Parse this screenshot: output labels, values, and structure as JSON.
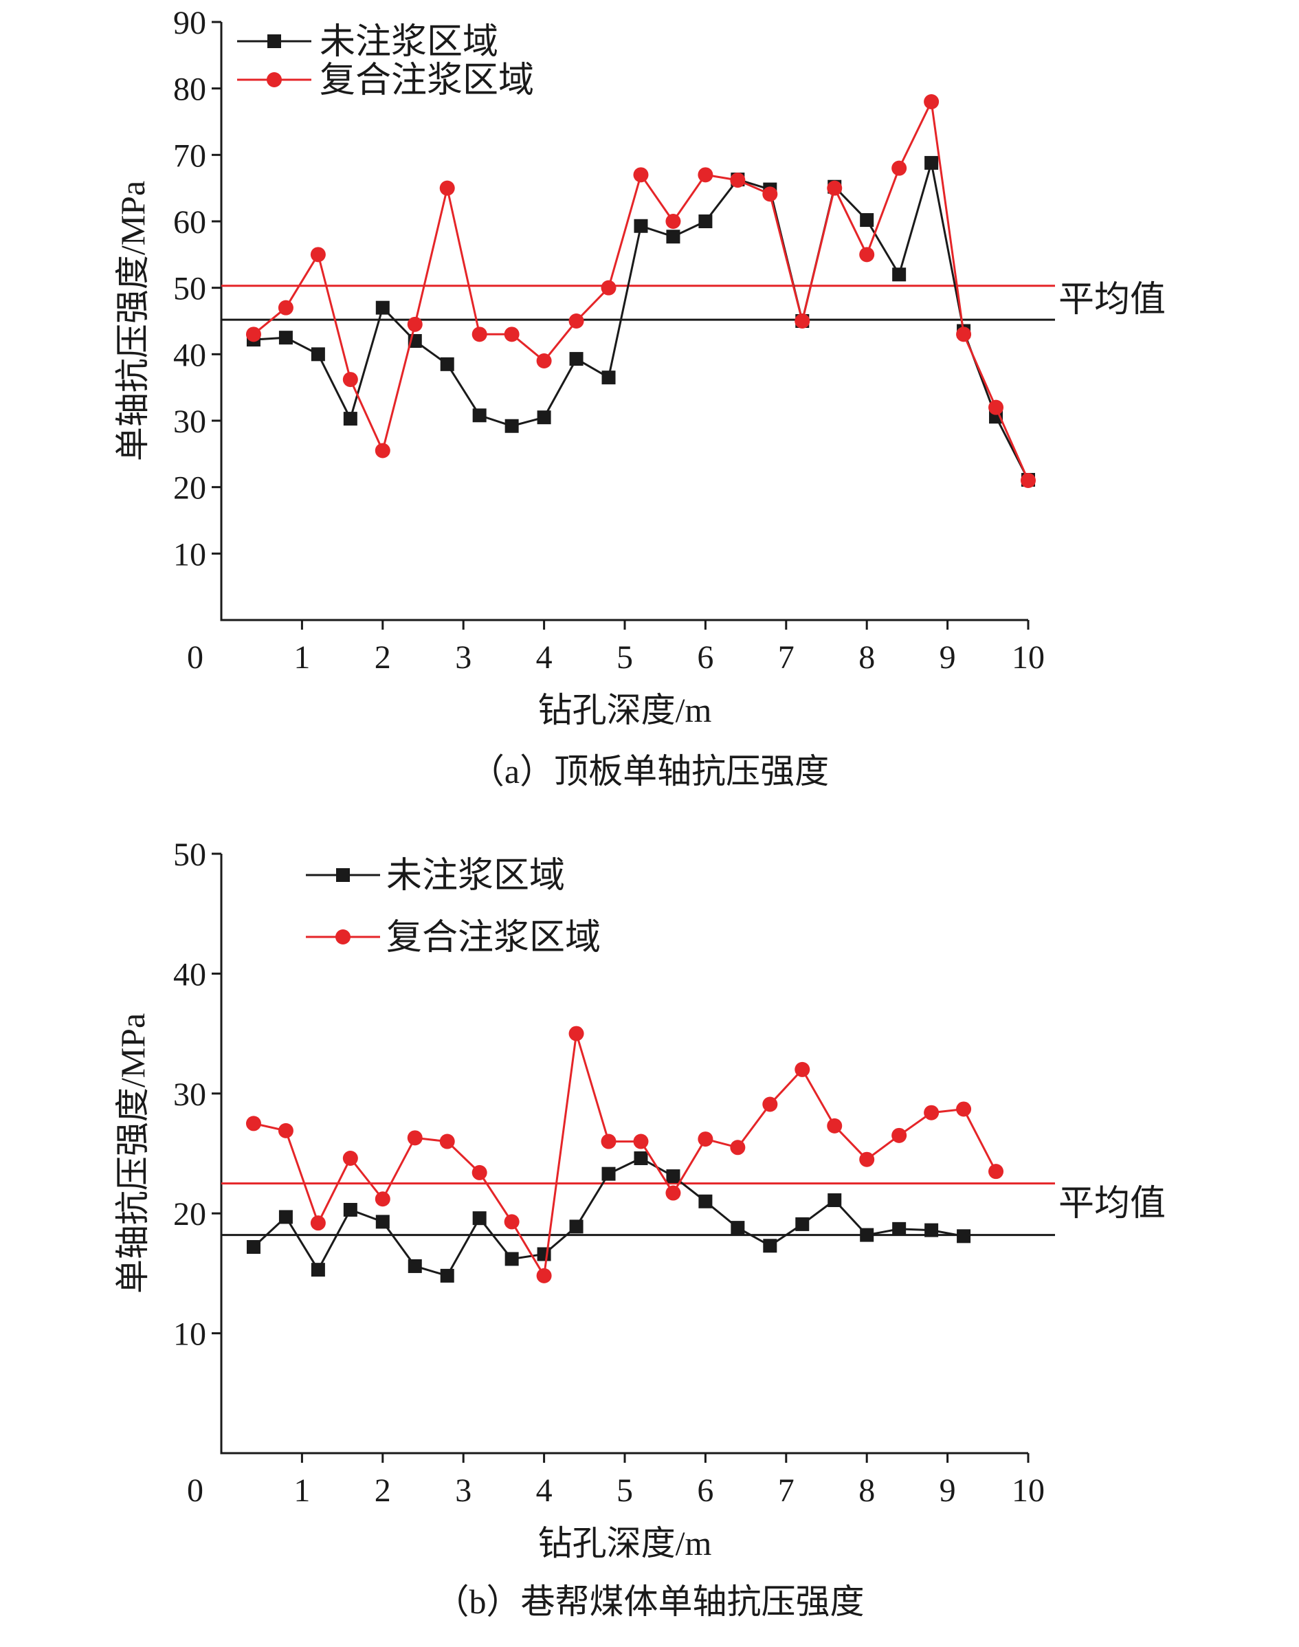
{
  "colors": {
    "series_black": "#1a1a1a",
    "series_red": "#e52528",
    "axis": "#1a1a1a"
  },
  "chart_data": [
    {
      "id": "a",
      "type": "line",
      "caption": "（a）顶板单轴抗压强度",
      "xlabel": "钻孔深度/m",
      "ylabel": "单轴抗压强度/MPa",
      "xlim": [
        0,
        10
      ],
      "ylim": [
        0,
        90
      ],
      "xticks": [
        0,
        1,
        2,
        3,
        4,
        5,
        6,
        7,
        8,
        9,
        10
      ],
      "yticks": [
        10,
        20,
        30,
        40,
        50,
        60,
        70,
        80,
        90
      ],
      "legend_location": "top-left",
      "series": [
        {
          "name": "未注浆区域",
          "marker": "square",
          "color": "#1a1a1a",
          "x": [
            0.4,
            0.8,
            1.2,
            1.6,
            2.0,
            2.4,
            2.8,
            3.2,
            3.6,
            4.0,
            4.4,
            4.8,
            5.2,
            5.6,
            6.0,
            6.4,
            6.8,
            7.2,
            7.6,
            8.0,
            8.4,
            8.8,
            9.2,
            9.6,
            10.0
          ],
          "values": [
            42.2,
            42.5,
            40,
            30.3,
            47,
            42,
            38.5,
            30.8,
            29.2,
            30.5,
            39.3,
            36.5,
            59.3,
            57.7,
            60,
            66.3,
            64.8,
            45,
            65.2,
            60.2,
            52,
            68.8,
            43.5,
            30.6,
            21.1
          ]
        },
        {
          "name": "复合注浆区域",
          "marker": "circle",
          "color": "#e52528",
          "x": [
            0.4,
            0.8,
            1.2,
            1.6,
            2.0,
            2.4,
            2.8,
            3.2,
            3.6,
            4.0,
            4.4,
            4.8,
            5.2,
            5.6,
            6.0,
            6.4,
            6.8,
            7.2,
            7.6,
            8.0,
            8.4,
            8.8,
            9.2,
            9.6,
            10.0
          ],
          "values": [
            43,
            47,
            55,
            36.2,
            25.5,
            44.5,
            65,
            43,
            43,
            39,
            45,
            50,
            67,
            60,
            67,
            66.2,
            64.1,
            45,
            65,
            55,
            68,
            78,
            43,
            32,
            21
          ]
        }
      ],
      "reference_lines": [
        {
          "value": 50.3,
          "color": "#e52528"
        },
        {
          "value": 45.2,
          "color": "#1a1a1a"
        }
      ],
      "reference_label": "平均值"
    },
    {
      "id": "b",
      "type": "line",
      "caption": "（b）巷帮煤体单轴抗压强度",
      "xlabel": "钻孔深度/m",
      "ylabel": "单轴抗压强度/MPa",
      "xlim": [
        0,
        10
      ],
      "ylim": [
        0,
        50
      ],
      "xticks": [
        0,
        1,
        2,
        3,
        4,
        5,
        6,
        7,
        8,
        9,
        10
      ],
      "yticks": [
        10,
        20,
        30,
        40,
        50
      ],
      "legend_location": "top-left",
      "series": [
        {
          "name": "未注浆区域",
          "marker": "square",
          "color": "#1a1a1a",
          "x": [
            0.4,
            0.8,
            1.2,
            1.6,
            2.0,
            2.4,
            2.8,
            3.2,
            3.6,
            4.0,
            4.4,
            4.8,
            5.2,
            5.6,
            6.0,
            6.4,
            6.8,
            7.2,
            7.6,
            8.0,
            8.4,
            8.8,
            9.2
          ],
          "values": [
            17.2,
            19.7,
            15.3,
            20.3,
            19.3,
            15.6,
            14.8,
            19.6,
            16.2,
            16.6,
            18.9,
            23.3,
            24.6,
            23.1,
            21,
            18.8,
            17.3,
            19.1,
            21.1,
            18.2,
            18.7,
            18.6,
            18.1
          ]
        },
        {
          "name": "复合注浆区域",
          "marker": "circle",
          "color": "#e52528",
          "x": [
            0.4,
            0.8,
            1.2,
            1.6,
            2.0,
            2.4,
            2.8,
            3.2,
            3.6,
            4.0,
            4.4,
            4.8,
            5.2,
            5.6,
            6.0,
            6.4,
            6.8,
            7.2,
            7.6,
            8.0,
            8.4,
            8.8,
            9.2,
            9.6
          ],
          "values": [
            27.5,
            26.9,
            19.2,
            24.6,
            21.2,
            26.3,
            26,
            23.4,
            19.3,
            14.8,
            35,
            26,
            26,
            21.7,
            26.2,
            25.5,
            29.1,
            32,
            27.3,
            24.5,
            26.5,
            28.4,
            28.7,
            23.5
          ]
        }
      ],
      "reference_lines": [
        {
          "value": 22.5,
          "color": "#e52528"
        },
        {
          "value": 18.2,
          "color": "#1a1a1a"
        }
      ],
      "reference_label": "平均值"
    }
  ]
}
